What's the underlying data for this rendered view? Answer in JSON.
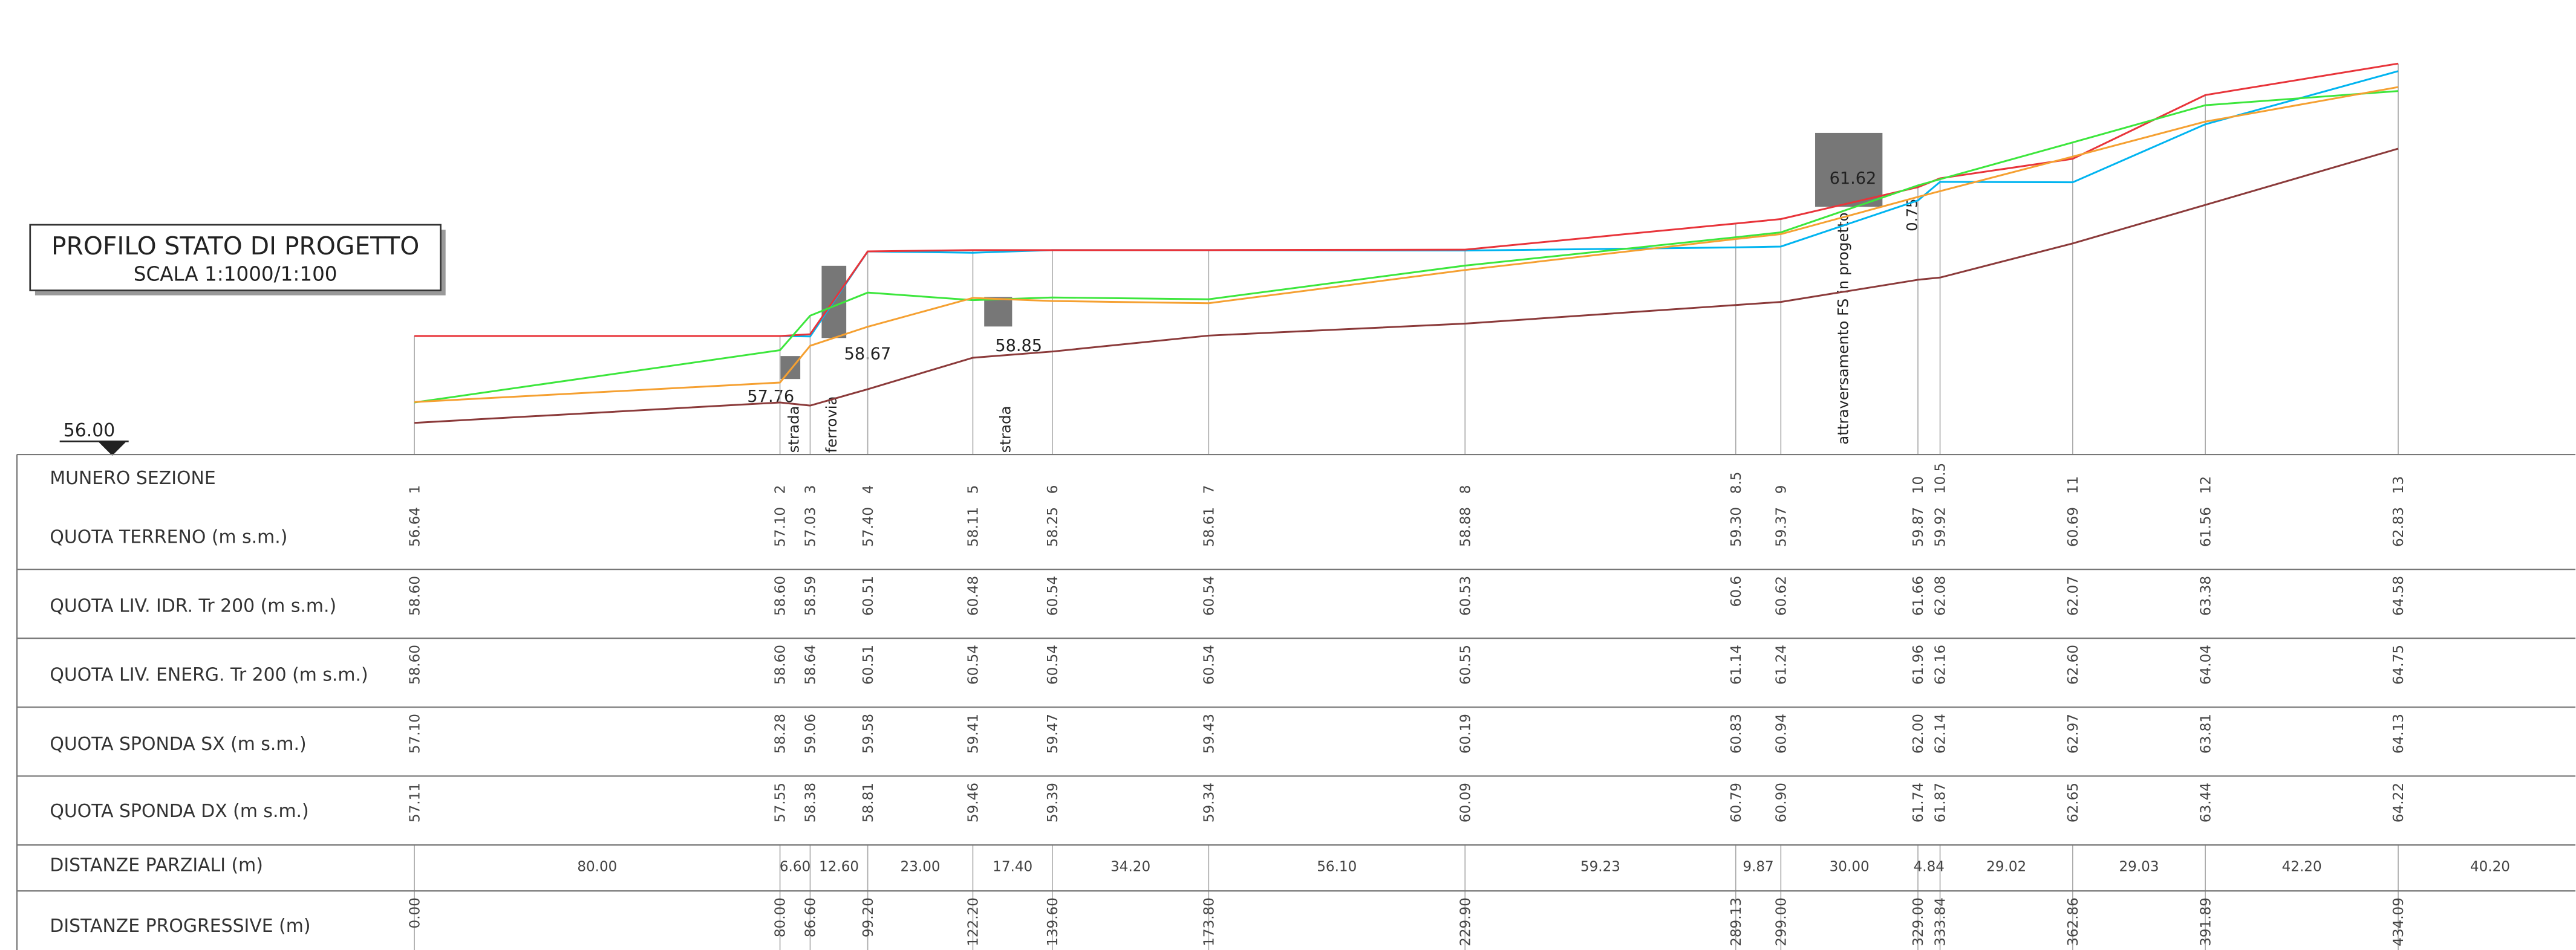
{
  "title": "PROFILO STATO DI PROGETTO",
  "scale": "SCALA 1:1000/1:100",
  "reference_level": "56.00",
  "annotations": {
    "levels": [
      "57.76",
      "58.67",
      "58.85",
      "61.62",
      "0.75"
    ],
    "labels": [
      "strada",
      "ferrovia",
      "strada",
      "attraversamento FS in progetto"
    ]
  },
  "table": {
    "header": "MUNERO SEZIONE",
    "sections": [
      "1",
      "2",
      "3",
      "4",
      "5",
      "6",
      "7",
      "8",
      "8.5",
      "9",
      "10",
      "10.5",
      "11",
      "12",
      "13"
    ],
    "rows": [
      {
        "label": "QUOTA TERRENO (m s.m.)",
        "color": "#8b3a3a",
        "values": [
          "56.64",
          "57.10",
          "57.03",
          "57.40",
          "58.11",
          "58.25",
          "58.61",
          "58.88",
          "59.30",
          "59.37",
          "59.87",
          "59.92",
          "60.69",
          "61.56",
          "62.83"
        ]
      },
      {
        "label": "QUOTA LIV. IDR. Tr 200 (m s.m.)",
        "color": "#00b4f0",
        "values": [
          "58.60",
          "58.60",
          "58.59",
          "60.51",
          "60.48",
          "60.54",
          "60.54",
          "60.53",
          "60.6",
          "60.62",
          "61.66",
          "62.08",
          "62.07",
          "63.38",
          "64.58"
        ]
      },
      {
        "label": "QUOTA LIV. ENERG. Tr 200 (m s.m.)",
        "color": "#e8343a",
        "values": [
          "58.60",
          "58.60",
          "58.64",
          "60.51",
          "60.54",
          "60.54",
          "60.54",
          "60.55",
          "61.14",
          "61.24",
          "61.96",
          "62.16",
          "62.60",
          "64.04",
          "64.75"
        ]
      },
      {
        "label": "QUOTA SPONDA SX (m s.m.)",
        "color": "#3ce63c",
        "values": [
          "57.10",
          "58.28",
          "59.06",
          "59.58",
          "59.41",
          "59.47",
          "59.43",
          "60.19",
          "60.83",
          "60.94",
          "62.00",
          "62.14",
          "62.97",
          "63.81",
          "64.13"
        ]
      },
      {
        "label": "QUOTA SPONDA DX (m s.m.)",
        "color": "#f5a031",
        "values": [
          "57.11",
          "57.55",
          "58.38",
          "58.81",
          "59.46",
          "59.39",
          "59.34",
          "60.09",
          "60.79",
          "60.90",
          "61.74",
          "61.87",
          "62.65",
          "63.44",
          "64.22"
        ]
      }
    ],
    "partial": {
      "label": "DISTANZE PARZIALI (m)",
      "values": [
        "80.00",
        "6.60",
        "12.60",
        "23.00",
        "17.40",
        "34.20",
        "56.10",
        "59.23",
        "9.87",
        "30.00",
        "4.84",
        "29.02",
        "29.03",
        "42.20",
        "40.20"
      ]
    },
    "progressive": {
      "label": "DISTANZE PROGRESSIVE (m)",
      "values": [
        "0.00",
        "80.00",
        "86.60",
        "99.20",
        "122.20",
        "139.60",
        "173.80",
        "229.90",
        "289.13",
        "299.00",
        "329.00",
        "333.84",
        "362.86",
        "391.89",
        "434.09"
      ]
    }
  }
}
